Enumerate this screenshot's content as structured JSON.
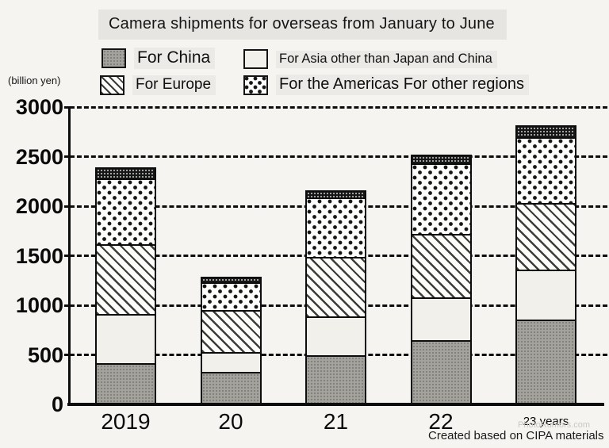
{
  "title": "Camera shipments for overseas from January to June",
  "unit_label": "(billion yen)",
  "legend": [
    {
      "key": "china",
      "label": "For China"
    },
    {
      "key": "asia",
      "label": "For Asia other than Japan and China"
    },
    {
      "key": "europe",
      "label": "For Europe"
    },
    {
      "key": "americas",
      "label": "For the Americas For other regions"
    }
  ],
  "footer": {
    "watermark": "PhotoRumors.com",
    "credit": "Created based on CIPA materials"
  },
  "chart_data": {
    "type": "bar",
    "stacked": true,
    "title": "Camera shipments for overseas from January to June",
    "ylabel": "(billion yen)",
    "ylim": [
      0,
      3000
    ],
    "yticks": [
      0,
      500,
      1000,
      1500,
      2000,
      2500,
      3000
    ],
    "grid": "horizontal dashed",
    "legend_position": "top",
    "categories": [
      "2019",
      "20",
      "21",
      "22",
      "23 years"
    ],
    "series": [
      {
        "name": "For China",
        "key": "china",
        "values": [
          420,
          330,
          500,
          650,
          860
        ]
      },
      {
        "name": "For Asia other than Japan and China",
        "key": "asia",
        "values": [
          490,
          200,
          390,
          430,
          500
        ]
      },
      {
        "name": "For Europe",
        "key": "europe",
        "values": [
          710,
          420,
          600,
          640,
          670
        ]
      },
      {
        "name": "For the Americas",
        "key": "americas",
        "values": [
          660,
          280,
          600,
          710,
          670
        ]
      },
      {
        "name": "For other regions",
        "key": "other",
        "values": [
          110,
          60,
          70,
          90,
          120
        ]
      }
    ],
    "totals": [
      2390,
      1290,
      2160,
      2520,
      2820
    ]
  }
}
